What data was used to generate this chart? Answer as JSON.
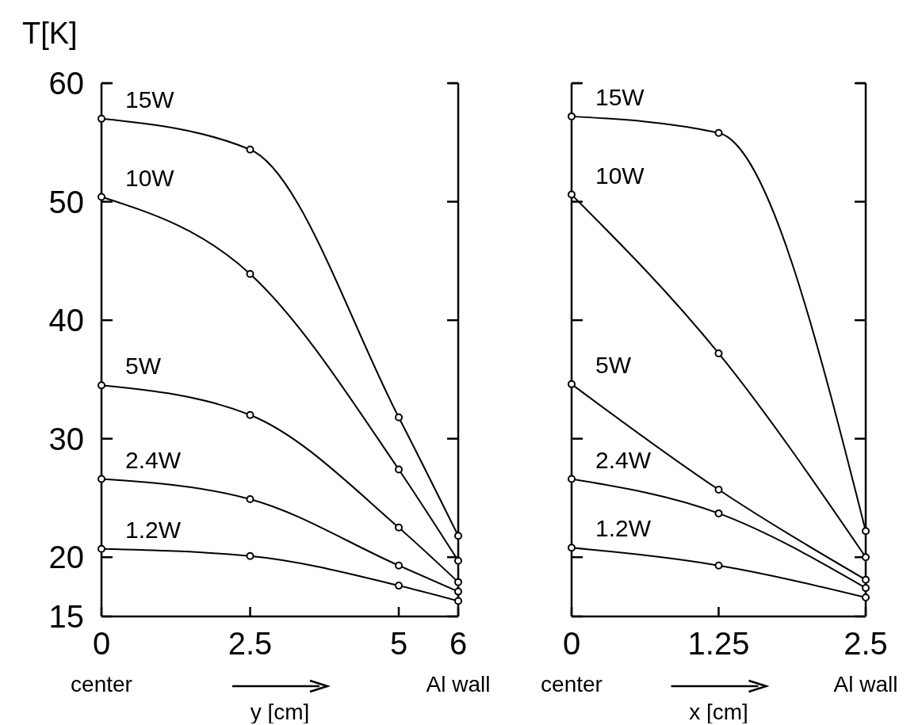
{
  "chart_data": [
    {
      "type": "line",
      "ylabel": "T[K]",
      "xlabel": "y [cm]",
      "annotations": [
        "center",
        "Al wall"
      ],
      "marker": "circle",
      "line_style": "solid",
      "x": [
        0,
        2.5,
        5,
        6
      ],
      "xlim": [
        0,
        6
      ],
      "xticks": [
        0,
        2.5,
        5,
        6
      ],
      "ylim": [
        15,
        60
      ],
      "yticks": [
        15,
        20,
        30,
        40,
        50,
        60
      ],
      "series": [
        {
          "name": "15W",
          "color": "#000000",
          "values": [
            57.0,
            54.4,
            31.8,
            21.8
          ]
        },
        {
          "name": "10W",
          "color": "#000000",
          "values": [
            50.4,
            43.9,
            27.4,
            19.7
          ]
        },
        {
          "name": "5W",
          "color": "#000000",
          "values": [
            34.5,
            32.0,
            22.5,
            17.9
          ]
        },
        {
          "name": "2.4W",
          "color": "#000000",
          "values": [
            26.6,
            24.9,
            19.3,
            17.1
          ]
        },
        {
          "name": "1.2W",
          "color": "#000000",
          "values": [
            20.7,
            20.1,
            17.6,
            16.3
          ]
        }
      ]
    },
    {
      "type": "line",
      "xlabel": "x [cm]",
      "annotations": [
        "center",
        "Al wall"
      ],
      "marker": "circle",
      "line_style": "solid",
      "tick_labels": "x",
      "x": [
        0,
        1.25,
        2.5
      ],
      "xlim": [
        0,
        2.5
      ],
      "xticks": [
        0,
        1.25,
        2.5
      ],
      "ylim": [
        15,
        60
      ],
      "yticks": [
        15,
        20,
        30,
        40,
        50,
        60
      ],
      "series": [
        {
          "name": "15W",
          "color": "#000000",
          "values": [
            57.2,
            55.8,
            22.2
          ]
        },
        {
          "name": "10W",
          "color": "#000000",
          "values": [
            50.6,
            37.2,
            20.0
          ]
        },
        {
          "name": "5W",
          "color": "#000000",
          "values": [
            34.6,
            25.7,
            18.1
          ]
        },
        {
          "name": "2.4W",
          "color": "#000000",
          "values": [
            26.6,
            23.7,
            17.4
          ]
        },
        {
          "name": "1.2W",
          "color": "#000000",
          "values": [
            20.8,
            19.3,
            16.6
          ]
        }
      ]
    }
  ]
}
